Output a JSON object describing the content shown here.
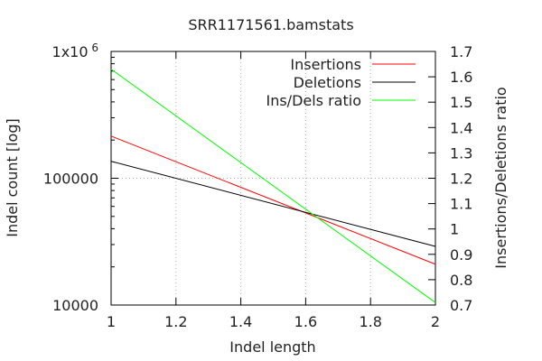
{
  "chart_data": {
    "type": "line",
    "title": "SRR1171561.bamstats",
    "xlabel": "Indel length",
    "ylabel": "Indel count [log]",
    "y2label": "Insertions/Deletions ratio",
    "xlim": [
      1,
      2
    ],
    "ylim": [
      10000,
      1000000
    ],
    "y_scale": "log",
    "y2lim": [
      0.7,
      1.7
    ],
    "grid": true,
    "legend_position": "top-right",
    "x_ticks": [
      {
        "value": 1,
        "label": "1"
      },
      {
        "value": 1.2,
        "label": "1.2"
      },
      {
        "value": 1.4,
        "label": "1.4"
      },
      {
        "value": 1.6,
        "label": "1.6"
      },
      {
        "value": 1.8,
        "label": "1.8"
      },
      {
        "value": 2,
        "label": "2"
      }
    ],
    "y_ticks": [
      {
        "value": 10000,
        "label": "10000"
      },
      {
        "value": 100000,
        "label": "100000"
      },
      {
        "value": 1000000,
        "label": "1x10"
      }
    ],
    "y_top_tick_exponent": "6",
    "y2_ticks": [
      {
        "value": 0.7,
        "label": "0.7"
      },
      {
        "value": 0.8,
        "label": "0.8"
      },
      {
        "value": 0.9,
        "label": "0.9"
      },
      {
        "value": 1.0,
        "label": "1"
      },
      {
        "value": 1.1,
        "label": "1.1"
      },
      {
        "value": 1.2,
        "label": "1.2"
      },
      {
        "value": 1.3,
        "label": "1.3"
      },
      {
        "value": 1.4,
        "label": "1.4"
      },
      {
        "value": 1.5,
        "label": "1.5"
      },
      {
        "value": 1.6,
        "label": "1.6"
      },
      {
        "value": 1.7,
        "label": "1.7"
      }
    ],
    "series": [
      {
        "name": "Insertions",
        "axis": "y",
        "color": "#ff0000",
        "x": [
          1,
          2
        ],
        "values": [
          215000,
          21000
        ]
      },
      {
        "name": "Deletions",
        "axis": "y",
        "color": "#000000",
        "x": [
          1,
          2
        ],
        "values": [
          136000,
          29000
        ]
      },
      {
        "name": "Ins/Dels ratio",
        "axis": "y2",
        "color": "#00ff00",
        "x": [
          1,
          2
        ],
        "values": [
          1.63,
          0.71
        ]
      }
    ]
  }
}
